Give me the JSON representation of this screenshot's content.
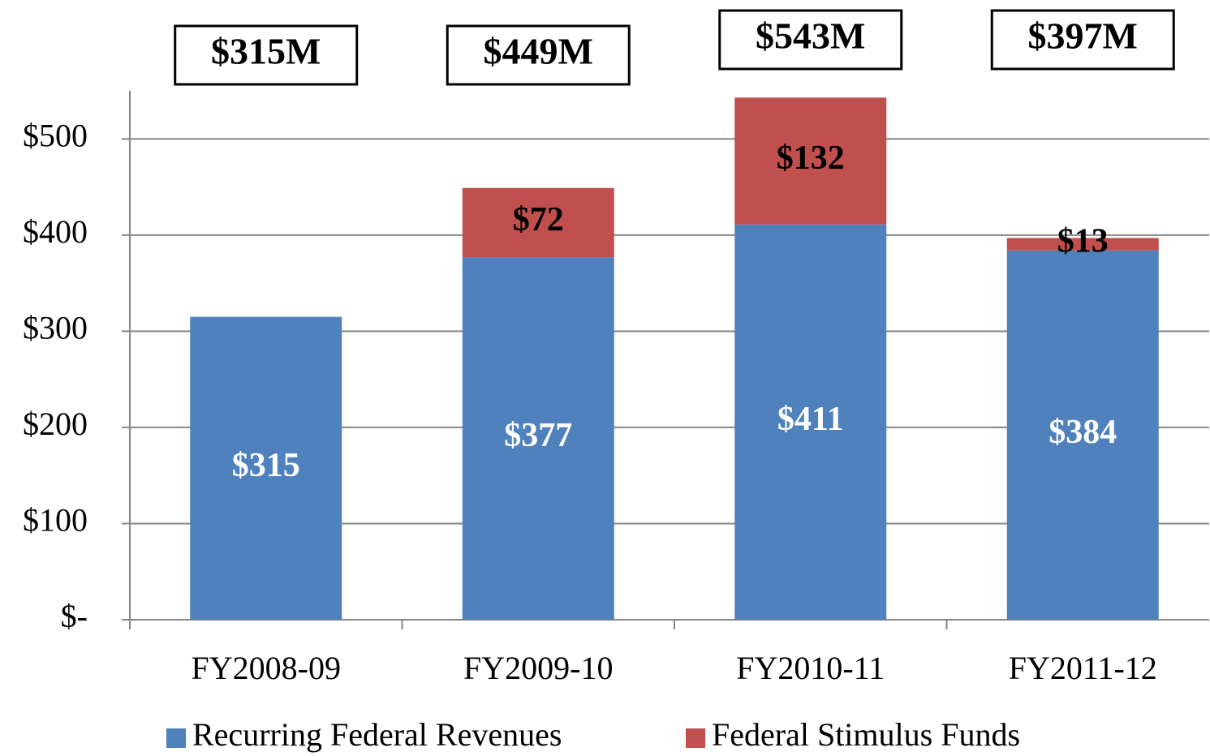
{
  "chart_data": {
    "type": "stacked_bar",
    "categories": [
      "FY2008-09",
      "FY2009-10",
      "FY2010-11",
      "FY2011-12"
    ],
    "series": [
      {
        "name": "Recurring Federal Revenues",
        "color": "#4f81bd",
        "values": [
          315,
          377,
          411,
          384
        ],
        "value_labels": [
          "$315",
          "$377",
          "$411",
          "$384"
        ]
      },
      {
        "name": "Federal Stimulus Funds",
        "color": "#c0504d",
        "values": [
          null,
          72,
          132,
          13
        ],
        "value_labels": [
          null,
          "$72",
          "$132",
          "$13"
        ]
      }
    ],
    "totals": {
      "values": [
        315,
        449,
        543,
        397
      ],
      "value_labels": [
        "$315M",
        "$449M",
        "$543M",
        "$397M"
      ]
    },
    "ylim": [
      0,
      550
    ],
    "yticks": [
      {
        "value": 0,
        "label": "$-"
      },
      {
        "value": 100,
        "label": "$100"
      },
      {
        "value": 200,
        "label": "$200"
      },
      {
        "value": 300,
        "label": "$300"
      },
      {
        "value": 400,
        "label": "$400"
      },
      {
        "value": 500,
        "label": "$500"
      }
    ],
    "grid": true,
    "legend": "bottom"
  }
}
